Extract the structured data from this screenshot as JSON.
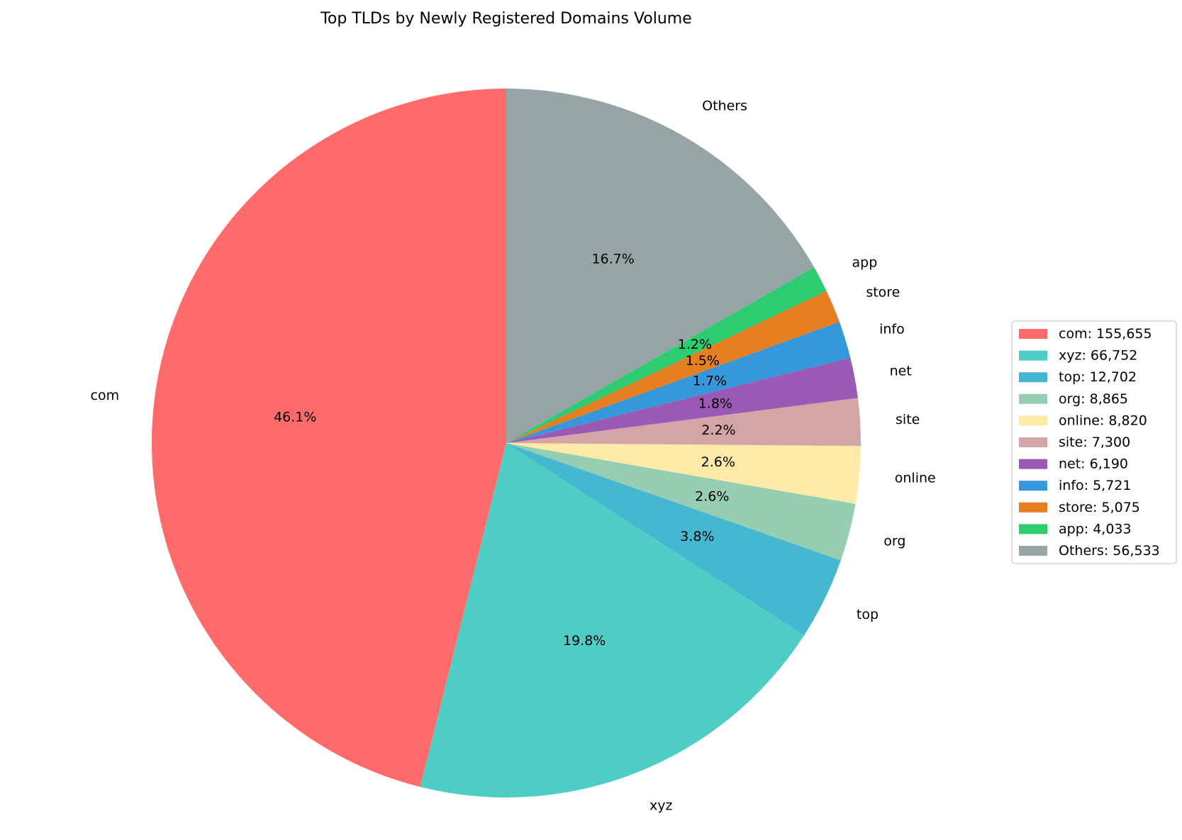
{
  "chart_data": {
    "type": "pie",
    "title": "Top TLDs by Newly Registered Domains Volume",
    "start_angle_deg": 90,
    "direction": "counterclockwise",
    "legend_position": "right",
    "slices": [
      {
        "label": "com",
        "value": 155655,
        "pct_label": "46.1%",
        "legend_label": "com: 155,655",
        "color": "#ff6b6b"
      },
      {
        "label": "xyz",
        "value": 66752,
        "pct_label": "19.8%",
        "legend_label": "xyz: 66,752",
        "color": "#4ecdc4"
      },
      {
        "label": "top",
        "value": 12702,
        "pct_label": "3.8%",
        "legend_label": "top: 12,702",
        "color": "#45b7d1"
      },
      {
        "label": "org",
        "value": 8865,
        "pct_label": "2.6%",
        "legend_label": "org: 8,865",
        "color": "#96ceb4"
      },
      {
        "label": "online",
        "value": 8820,
        "pct_label": "2.6%",
        "legend_label": "online: 8,820",
        "color": "#ffeaa7"
      },
      {
        "label": "site",
        "value": 7300,
        "pct_label": "2.2%",
        "legend_label": "site: 7,300",
        "color": "#d4a5a5"
      },
      {
        "label": "net",
        "value": 6190,
        "pct_label": "1.8%",
        "legend_label": "net: 6,190",
        "color": "#9b59b6"
      },
      {
        "label": "info",
        "value": 5721,
        "pct_label": "1.7%",
        "legend_label": "info: 5,721",
        "color": "#3498db"
      },
      {
        "label": "store",
        "value": 5075,
        "pct_label": "1.5%",
        "legend_label": "store: 5,075",
        "color": "#e67e22"
      },
      {
        "label": "app",
        "value": 4033,
        "pct_label": "1.2%",
        "legend_label": "app: 4,033",
        "color": "#2ecc71"
      },
      {
        "label": "Others",
        "value": 56533,
        "pct_label": "16.7%",
        "legend_label": "Others: 56,533",
        "color": "#95a5a6"
      }
    ]
  }
}
